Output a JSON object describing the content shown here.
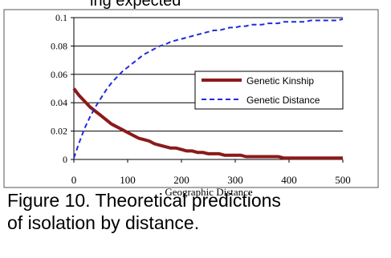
{
  "header_fragment": "ing expected",
  "caption": {
    "line1": "Figure 10.  Theoretical predictions",
    "line2": "of isolation by distance."
  },
  "colors": {
    "kinship": "#8b1a1a",
    "distance": "#1e2bdc",
    "grid": "#000000",
    "frame": "#555555"
  },
  "chart_data": {
    "type": "line",
    "title": "",
    "xlabel": "Geographic Distance",
    "ylabel": "",
    "xlim": [
      0,
      500
    ],
    "ylim": [
      0,
      0.1
    ],
    "x_ticks": [
      0,
      100,
      200,
      300,
      400,
      500
    ],
    "x_tick_labels": [
      "0",
      "100",
      "200",
      "300",
      "400",
      "500"
    ],
    "y_ticks": [
      0,
      0.02,
      0.04,
      0.06,
      0.08,
      0.1
    ],
    "y_tick_labels": [
      "0",
      "0.02",
      "0.04",
      "0.06",
      "0.08",
      "0.1"
    ],
    "grid": "horizontal",
    "legend_position": "right",
    "series": [
      {
        "name": "Genetic Kinship",
        "color": "#8b1a1a",
        "style": "solid",
        "x": [
          0,
          10,
          20,
          30,
          40,
          50,
          60,
          70,
          80,
          90,
          100,
          110,
          120,
          130,
          140,
          150,
          160,
          170,
          180,
          190,
          200,
          210,
          220,
          230,
          240,
          250,
          260,
          270,
          280,
          290,
          300,
          310,
          320,
          330,
          340,
          350,
          360,
          370,
          380,
          390,
          400,
          410,
          420,
          430,
          440,
          450,
          460,
          470,
          480,
          490,
          500
        ],
        "values": [
          0.05,
          0.045,
          0.041,
          0.037,
          0.034,
          0.031,
          0.028,
          0.025,
          0.023,
          0.021,
          0.019,
          0.017,
          0.015,
          0.014,
          0.013,
          0.011,
          0.01,
          0.009,
          0.008,
          0.008,
          0.007,
          0.006,
          0.006,
          0.005,
          0.005,
          0.004,
          0.004,
          0.004,
          0.003,
          0.003,
          0.003,
          0.003,
          0.002,
          0.002,
          0.002,
          0.002,
          0.002,
          0.002,
          0.002,
          0.001,
          0.001,
          0.001,
          0.001,
          0.001,
          0.001,
          0.001,
          0.001,
          0.001,
          0.001,
          0.001,
          0.001
        ]
      },
      {
        "name": "Genetic Distance",
        "color": "#1e2bdc",
        "style": "dashed",
        "x": [
          0,
          10,
          20,
          30,
          40,
          50,
          60,
          70,
          80,
          90,
          100,
          110,
          120,
          130,
          140,
          150,
          160,
          170,
          180,
          190,
          200,
          210,
          220,
          230,
          240,
          250,
          260,
          270,
          280,
          290,
          300,
          310,
          320,
          330,
          340,
          350,
          360,
          370,
          380,
          390,
          400,
          410,
          420,
          430,
          440,
          450,
          460,
          470,
          480,
          490,
          500
        ],
        "values": [
          0.001,
          0.012,
          0.022,
          0.03,
          0.037,
          0.043,
          0.049,
          0.054,
          0.058,
          0.062,
          0.065,
          0.068,
          0.071,
          0.074,
          0.076,
          0.078,
          0.08,
          0.081,
          0.083,
          0.084,
          0.085,
          0.086,
          0.087,
          0.088,
          0.089,
          0.09,
          0.091,
          0.091,
          0.092,
          0.093,
          0.093,
          0.094,
          0.094,
          0.095,
          0.095,
          0.095,
          0.096,
          0.096,
          0.096,
          0.097,
          0.097,
          0.097,
          0.097,
          0.097,
          0.098,
          0.098,
          0.098,
          0.098,
          0.098,
          0.098,
          0.099
        ]
      }
    ]
  }
}
